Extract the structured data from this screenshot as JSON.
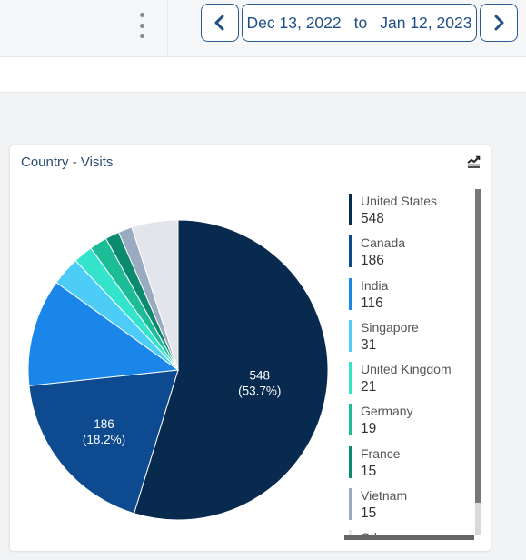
{
  "header": {
    "menu_icon": "kebab-menu-icon",
    "prev_icon": "chevron-left-icon",
    "next_icon": "chevron-right-icon",
    "date_start": "Dec 13, 2022",
    "date_separator": "to",
    "date_end": "Jan 12, 2023",
    "accent_color": "#1f4f86"
  },
  "widget": {
    "title": "Country - Visits",
    "export_icon": "export-chart-icon"
  },
  "chart_data": {
    "type": "pie",
    "title": "Country - Visits",
    "slices": [
      {
        "label": "United States",
        "value": 548,
        "percent": 53.7,
        "color": "#082a4f"
      },
      {
        "label": "Canada",
        "value": 186,
        "percent": 18.2,
        "color": "#0e4a8f"
      },
      {
        "label": "India",
        "value": 116,
        "percent": 11.4,
        "color": "#1b86ea"
      },
      {
        "label": "Singapore",
        "value": 31,
        "percent": 3.0,
        "color": "#4cccf6"
      },
      {
        "label": "United Kingdom",
        "value": 21,
        "percent": 2.1,
        "color": "#33e3cc"
      },
      {
        "label": "Germany",
        "value": 19,
        "percent": 1.9,
        "color": "#1bbc96"
      },
      {
        "label": "France",
        "value": 15,
        "percent": 1.5,
        "color": "#0c8a6e"
      },
      {
        "label": "Vietnam",
        "value": 15,
        "percent": 1.5,
        "color": "#9aaac0"
      },
      {
        "label": "Other",
        "value": 50,
        "percent": 4.9,
        "color": "#e2e6ea"
      }
    ],
    "data_labels": [
      {
        "value_text": "548",
        "percent_text": "(53.7%)"
      },
      {
        "value_text": "186",
        "percent_text": "(18.2%)"
      }
    ],
    "legend": [
      {
        "label": "United States",
        "value": "548",
        "color": "#082a4f"
      },
      {
        "label": "Canada",
        "value": "186",
        "color": "#0e4a8f"
      },
      {
        "label": "India",
        "value": "116",
        "color": "#1b86ea"
      },
      {
        "label": "Singapore",
        "value": "31",
        "color": "#4cccf6"
      },
      {
        "label": "United Kingdom",
        "value": "21",
        "color": "#33e3cc"
      },
      {
        "label": "Germany",
        "value": "19",
        "color": "#1bbc96"
      },
      {
        "label": "France",
        "value": "15",
        "color": "#0c8a6e"
      },
      {
        "label": "Vietnam",
        "value": "15",
        "color": "#9aaac0"
      },
      {
        "label": "Other",
        "value": "",
        "color": "#e2e6ea"
      }
    ],
    "legend_placement": "right"
  }
}
